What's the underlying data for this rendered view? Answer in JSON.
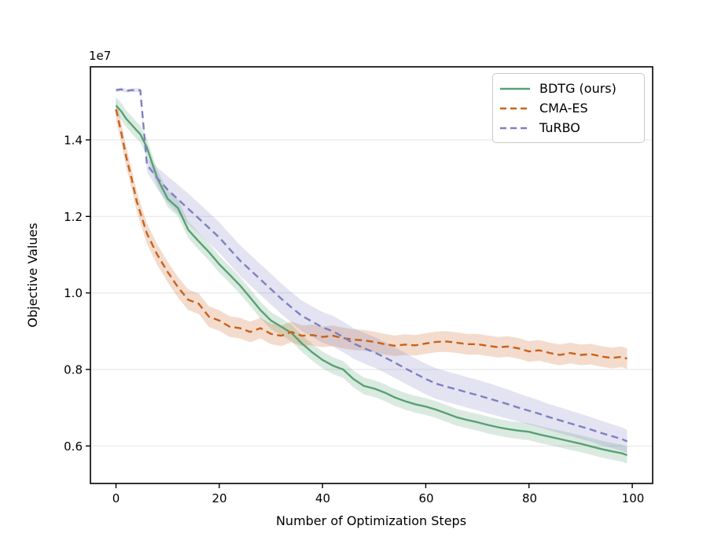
{
  "chart_data": {
    "type": "line",
    "title": "",
    "xlabel": "Number of Optimization Steps",
    "ylabel": "Objective Values",
    "offset_text": "1e7",
    "value_scale": "1e7",
    "xlim": [
      -4.95,
      103.95
    ],
    "ylim": [
      0.502,
      1.591
    ],
    "xticks": [
      "0",
      "20",
      "40",
      "60",
      "80",
      "100"
    ],
    "yticks": [
      "0.6",
      "0.8",
      "1.0",
      "1.2",
      "1.4"
    ],
    "grid": "horizontal",
    "grid_color": "#e8e8e8",
    "legend_position": "upper right",
    "band_alpha": 0.22,
    "x": [
      0,
      1,
      2,
      3,
      4,
      4.7,
      6,
      8,
      10,
      12,
      14,
      16,
      18,
      20,
      22,
      24,
      26,
      28,
      30,
      32,
      34,
      36,
      38,
      40,
      42,
      44,
      46,
      48,
      50,
      52,
      54,
      56,
      58,
      60,
      62,
      64,
      66,
      68,
      70,
      72,
      74,
      76,
      78,
      80,
      82,
      84,
      86,
      88,
      90,
      92,
      94,
      96,
      98,
      99
    ],
    "series": [
      {
        "name": "BDTG (ours)",
        "color": "#57a173",
        "style": "solid",
        "band": 0.022,
        "values": [
          1.49,
          1.475,
          1.455,
          1.44,
          1.425,
          1.415,
          1.38,
          1.3,
          1.246,
          1.222,
          1.165,
          1.135,
          1.107,
          1.075,
          1.048,
          1.02,
          0.988,
          0.955,
          0.928,
          0.912,
          0.895,
          0.868,
          0.845,
          0.825,
          0.81,
          0.8,
          0.775,
          0.757,
          0.75,
          0.74,
          0.727,
          0.717,
          0.709,
          0.703,
          0.695,
          0.685,
          0.675,
          0.668,
          0.662,
          0.655,
          0.649,
          0.644,
          0.64,
          0.637,
          0.63,
          0.624,
          0.618,
          0.612,
          0.606,
          0.599,
          0.592,
          0.586,
          0.581,
          0.576
        ]
      },
      {
        "name": "CMA-ES",
        "color": "#c9611c",
        "style": "dashed",
        "band": 0.027,
        "values": [
          1.48,
          1.42,
          1.355,
          1.3,
          1.24,
          1.21,
          1.155,
          1.1,
          1.055,
          1.015,
          0.982,
          0.972,
          0.938,
          0.928,
          0.912,
          0.908,
          0.898,
          0.908,
          0.893,
          0.888,
          0.898,
          0.888,
          0.89,
          0.885,
          0.888,
          0.882,
          0.878,
          0.876,
          0.872,
          0.866,
          0.862,
          0.865,
          0.863,
          0.868,
          0.872,
          0.873,
          0.87,
          0.866,
          0.866,
          0.862,
          0.858,
          0.86,
          0.855,
          0.847,
          0.85,
          0.843,
          0.838,
          0.843,
          0.838,
          0.84,
          0.834,
          0.83,
          0.833,
          0.828
        ]
      },
      {
        "name": "TuRBO",
        "color": "#7e80c1",
        "style": "dashed",
        "band": [
          0.005,
          0.005,
          0.005,
          0.005,
          0.005,
          0.005,
          0.018,
          0.028,
          0.035,
          0.038,
          0.04,
          0.04,
          0.04,
          0.04,
          0.04,
          0.04,
          0.04,
          0.04,
          0.04,
          0.04,
          0.04,
          0.04,
          0.04,
          0.04,
          0.04,
          0.04,
          0.04,
          0.04,
          0.04,
          0.04,
          0.04,
          0.04,
          0.04,
          0.04,
          0.04,
          0.04,
          0.04,
          0.04,
          0.04,
          0.04,
          0.039,
          0.038,
          0.037,
          0.036,
          0.035,
          0.034,
          0.034,
          0.033,
          0.033,
          0.032,
          0.032,
          0.031,
          0.031,
          0.03
        ],
        "values": [
          1.53,
          1.532,
          1.528,
          1.53,
          1.53,
          1.53,
          1.335,
          1.3,
          1.27,
          1.245,
          1.22,
          1.195,
          1.17,
          1.145,
          1.115,
          1.085,
          1.06,
          1.035,
          1.01,
          0.985,
          0.962,
          0.94,
          0.925,
          0.91,
          0.9,
          0.885,
          0.868,
          0.856,
          0.845,
          0.832,
          0.818,
          0.803,
          0.789,
          0.775,
          0.763,
          0.755,
          0.748,
          0.74,
          0.733,
          0.725,
          0.717,
          0.709,
          0.7,
          0.692,
          0.684,
          0.675,
          0.667,
          0.659,
          0.651,
          0.643,
          0.634,
          0.626,
          0.618,
          0.612
        ]
      }
    ]
  }
}
